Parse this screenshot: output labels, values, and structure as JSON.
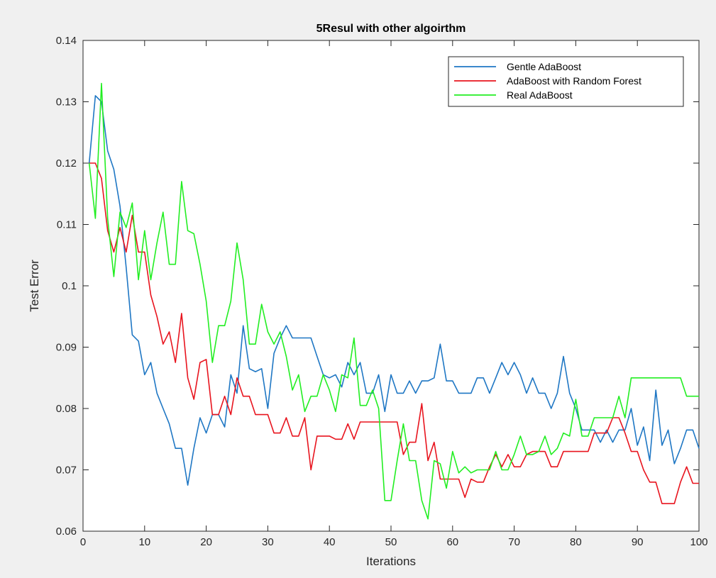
{
  "chart_data": {
    "type": "line",
    "title": "5Resul with other algoirthm",
    "xlabel": "Iterations",
    "ylabel": "Test Error",
    "xlim": [
      0,
      100
    ],
    "ylim": [
      0.06,
      0.14
    ],
    "xticks": [
      0,
      10,
      20,
      30,
      40,
      50,
      60,
      70,
      80,
      90,
      100
    ],
    "xtick_labels": [
      "0",
      "10",
      "20",
      "30",
      "40",
      "50",
      "60",
      "70",
      "80",
      "90",
      "100"
    ],
    "yticks": [
      0.06,
      0.07,
      0.08,
      0.09,
      0.1,
      0.11,
      0.12,
      0.13,
      0.14
    ],
    "ytick_labels": [
      "0.06",
      "0.07",
      "0.08",
      "0.09",
      "0.1",
      "0.11",
      "0.12",
      "0.13",
      "0.14"
    ],
    "grid": false,
    "legend_position": "top-right",
    "series": [
      {
        "name": "Gentle AdaBoost",
        "color": "#1f77c4",
        "x": [
          1,
          2,
          3,
          4,
          5,
          6,
          7,
          8,
          9,
          10,
          11,
          12,
          13,
          14,
          15,
          16,
          17,
          18,
          19,
          20,
          21,
          22,
          23,
          24,
          25,
          26,
          27,
          28,
          29,
          30,
          31,
          32,
          33,
          34,
          35,
          36,
          37,
          38,
          39,
          40,
          41,
          42,
          43,
          44,
          45,
          46,
          47,
          48,
          49,
          50,
          51,
          52,
          53,
          54,
          55,
          56,
          57,
          58,
          59,
          60,
          61,
          62,
          63,
          64,
          65,
          66,
          67,
          68,
          69,
          70,
          71,
          72,
          73,
          74,
          75,
          76,
          77,
          78,
          79,
          80,
          81,
          82,
          83,
          84,
          85,
          86,
          87,
          88,
          89,
          90,
          91,
          92,
          93,
          94,
          95,
          96,
          97,
          98,
          99,
          100
        ],
        "values": [
          0.12,
          0.131,
          0.13,
          0.122,
          0.119,
          0.113,
          0.103,
          0.092,
          0.091,
          0.0855,
          0.0875,
          0.0825,
          0.08,
          0.0775,
          0.0735,
          0.0735,
          0.0675,
          0.0735,
          0.0785,
          0.076,
          0.079,
          0.079,
          0.077,
          0.0855,
          0.0825,
          0.0935,
          0.0865,
          0.086,
          0.0865,
          0.08,
          0.089,
          0.0915,
          0.0935,
          0.0915,
          0.0915,
          0.0915,
          0.0915,
          0.0885,
          0.0855,
          0.085,
          0.0855,
          0.0835,
          0.0875,
          0.0855,
          0.0875,
          0.0825,
          0.0825,
          0.0855,
          0.0795,
          0.0855,
          0.0825,
          0.0825,
          0.0845,
          0.0825,
          0.0845,
          0.0845,
          0.085,
          0.0905,
          0.0845,
          0.0845,
          0.0825,
          0.0825,
          0.0825,
          0.085,
          0.085,
          0.0825,
          0.085,
          0.0875,
          0.0855,
          0.0875,
          0.0855,
          0.0825,
          0.085,
          0.0825,
          0.0825,
          0.08,
          0.0825,
          0.0885,
          0.0825,
          0.08,
          0.0765,
          0.0765,
          0.0765,
          0.0745,
          0.0765,
          0.0745,
          0.0765,
          0.0765,
          0.08,
          0.074,
          0.077,
          0.0715,
          0.083,
          0.074,
          0.0765,
          0.071,
          0.0735,
          0.0765,
          0.0765,
          0.0735
        ]
      },
      {
        "name": "AdaBoost with Random Forest",
        "color": "#e8141e",
        "x": [
          1,
          2,
          3,
          4,
          5,
          6,
          7,
          8,
          9,
          10,
          11,
          12,
          13,
          14,
          15,
          16,
          17,
          18,
          19,
          20,
          21,
          22,
          23,
          24,
          25,
          26,
          27,
          28,
          29,
          30,
          31,
          32,
          33,
          34,
          35,
          36,
          37,
          38,
          39,
          40,
          41,
          42,
          43,
          44,
          45,
          46,
          47,
          48,
          49,
          50,
          51,
          52,
          53,
          54,
          55,
          56,
          57,
          58,
          59,
          60,
          61,
          62,
          63,
          64,
          65,
          66,
          67,
          68,
          69,
          70,
          71,
          72,
          73,
          74,
          75,
          76,
          77,
          78,
          79,
          80,
          81,
          82,
          83,
          84,
          85,
          86,
          87,
          88,
          89,
          90,
          91,
          92,
          93,
          94,
          95,
          96,
          97,
          98,
          99,
          100
        ],
        "values": [
          0.12,
          0.12,
          0.1175,
          0.109,
          0.1055,
          0.1095,
          0.1055,
          0.1115,
          0.1055,
          0.1055,
          0.0985,
          0.095,
          0.0905,
          0.0925,
          0.0875,
          0.0955,
          0.085,
          0.0815,
          0.0875,
          0.088,
          0.079,
          0.079,
          0.082,
          0.079,
          0.085,
          0.082,
          0.082,
          0.079,
          0.079,
          0.079,
          0.076,
          0.076,
          0.0785,
          0.0755,
          0.0755,
          0.0785,
          0.07,
          0.0755,
          0.0755,
          0.0755,
          0.075,
          0.075,
          0.0775,
          0.075,
          0.0778,
          0.0778,
          0.0778,
          0.0778,
          0.0778,
          0.0778,
          0.0778,
          0.0725,
          0.0745,
          0.0745,
          0.0808,
          0.0715,
          0.0745,
          0.0685,
          0.0685,
          0.0685,
          0.0685,
          0.0655,
          0.0685,
          0.068,
          0.068,
          0.0705,
          0.0725,
          0.0705,
          0.0725,
          0.0705,
          0.0705,
          0.0725,
          0.073,
          0.073,
          0.073,
          0.0705,
          0.0705,
          0.073,
          0.073,
          0.073,
          0.073,
          0.073,
          0.076,
          0.076,
          0.076,
          0.0785,
          0.0785,
          0.076,
          0.073,
          0.073,
          0.07,
          0.068,
          0.068,
          0.0645,
          0.0645,
          0.0645,
          0.068,
          0.0705,
          0.0678,
          0.0678
        ]
      },
      {
        "name": "Real AdaBoost",
        "color": "#22ee22",
        "x": [
          1,
          2,
          3,
          4,
          5,
          6,
          7,
          8,
          9,
          10,
          11,
          12,
          13,
          14,
          15,
          16,
          17,
          18,
          19,
          20,
          21,
          22,
          23,
          24,
          25,
          26,
          27,
          28,
          29,
          30,
          31,
          32,
          33,
          34,
          35,
          36,
          37,
          38,
          39,
          40,
          41,
          42,
          43,
          44,
          45,
          46,
          47,
          48,
          49,
          50,
          51,
          52,
          53,
          54,
          55,
          56,
          57,
          58,
          59,
          60,
          61,
          62,
          63,
          64,
          65,
          66,
          67,
          68,
          69,
          70,
          71,
          72,
          73,
          74,
          75,
          76,
          77,
          78,
          79,
          80,
          81,
          82,
          83,
          84,
          85,
          86,
          87,
          88,
          89,
          90,
          91,
          92,
          93,
          94,
          95,
          96,
          97,
          98,
          99,
          100
        ],
        "values": [
          0.12,
          0.111,
          0.133,
          0.111,
          0.1015,
          0.112,
          0.1095,
          0.1135,
          0.101,
          0.109,
          0.101,
          0.107,
          0.112,
          0.1035,
          0.1035,
          0.117,
          0.109,
          0.1085,
          0.1035,
          0.0975,
          0.0875,
          0.0935,
          0.0935,
          0.0975,
          0.107,
          0.101,
          0.0905,
          0.0905,
          0.097,
          0.0925,
          0.0905,
          0.0925,
          0.0885,
          0.083,
          0.0855,
          0.0795,
          0.082,
          0.082,
          0.0855,
          0.083,
          0.0795,
          0.0855,
          0.085,
          0.0915,
          0.0805,
          0.0805,
          0.083,
          0.08,
          0.065,
          0.065,
          0.0715,
          0.0775,
          0.0715,
          0.0715,
          0.065,
          0.062,
          0.0715,
          0.071,
          0.067,
          0.073,
          0.0695,
          0.0705,
          0.0695,
          0.07,
          0.07,
          0.07,
          0.073,
          0.07,
          0.07,
          0.0725,
          0.0755,
          0.0725,
          0.0725,
          0.073,
          0.0755,
          0.0725,
          0.0735,
          0.076,
          0.0755,
          0.0815,
          0.0755,
          0.0755,
          0.0785,
          0.0785,
          0.0785,
          0.0785,
          0.082,
          0.0785,
          0.085,
          0.085,
          0.085,
          0.085,
          0.085,
          0.085,
          0.085,
          0.085,
          0.085,
          0.082,
          0.082,
          0.082
        ]
      }
    ]
  }
}
